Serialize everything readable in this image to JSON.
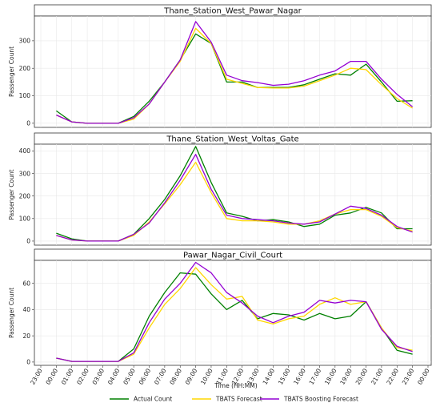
{
  "colors": {
    "actual": "#008000",
    "tbats": "#ffd700",
    "boosting": "#9400d3"
  },
  "chart_data": [
    {
      "type": "line",
      "title": "Thane_Station_West_Pawar_Nagar",
      "ylabel": "Passenger Count",
      "ylim": [
        -15,
        390
      ],
      "yticks": [
        "0",
        "100",
        "200",
        "300"
      ],
      "ytick_values": [
        0,
        100,
        200,
        300
      ],
      "x": [
        "00:00",
        "01:00",
        "02:00",
        "03:00",
        "04:00",
        "05:00",
        "06:00",
        "07:00",
        "08:00",
        "09:00",
        "10:00",
        "11:00",
        "12:00",
        "13:00",
        "14:00",
        "15:00",
        "16:00",
        "17:00",
        "18:00",
        "19:00",
        "20:00",
        "21:00",
        "22:00",
        "23:00"
      ],
      "series": [
        {
          "name": "Actual Count",
          "values": [
            45,
            5,
            0,
            0,
            0,
            25,
            80,
            150,
            230,
            325,
            290,
            150,
            150,
            130,
            130,
            130,
            140,
            160,
            180,
            175,
            215,
            150,
            80,
            82
          ]
        },
        {
          "name": "TBATS Forecast",
          "values": [
            30,
            5,
            0,
            0,
            0,
            15,
            70,
            150,
            225,
            345,
            290,
            160,
            145,
            130,
            128,
            128,
            135,
            155,
            175,
            200,
            195,
            140,
            90,
            55
          ]
        },
        {
          "name": "TBATS Boosting Forecast",
          "values": [
            30,
            5,
            0,
            0,
            0,
            20,
            70,
            150,
            230,
            370,
            295,
            175,
            155,
            148,
            138,
            142,
            155,
            175,
            190,
            225,
            225,
            160,
            105,
            60
          ]
        }
      ]
    },
    {
      "type": "line",
      "title": "Thane_Station_West_Voltas_Gate",
      "ylabel": "Passenger Count",
      "ylim": [
        -18,
        430
      ],
      "yticks": [
        "0",
        "100",
        "200",
        "300",
        "400"
      ],
      "ytick_values": [
        0,
        100,
        200,
        300,
        400
      ],
      "x": [
        "00:00",
        "01:00",
        "02:00",
        "03:00",
        "04:00",
        "05:00",
        "06:00",
        "07:00",
        "08:00",
        "09:00",
        "10:00",
        "11:00",
        "12:00",
        "13:00",
        "14:00",
        "15:00",
        "16:00",
        "17:00",
        "18:00",
        "19:00",
        "20:00",
        "21:00",
        "22:00",
        "23:00"
      ],
      "series": [
        {
          "name": "Actual Count",
          "values": [
            35,
            10,
            0,
            0,
            0,
            30,
            100,
            185,
            290,
            420,
            260,
            125,
            110,
            90,
            95,
            85,
            65,
            75,
            115,
            125,
            150,
            125,
            55,
            55
          ]
        },
        {
          "name": "TBATS Forecast",
          "values": [
            25,
            5,
            0,
            0,
            0,
            25,
            85,
            165,
            250,
            350,
            215,
            100,
            90,
            90,
            85,
            75,
            75,
            90,
            120,
            140,
            140,
            110,
            60,
            45
          ]
        },
        {
          "name": "TBATS Boosting Forecast",
          "values": [
            25,
            5,
            0,
            0,
            0,
            30,
            80,
            170,
            270,
            385,
            230,
            115,
            100,
            95,
            90,
            80,
            75,
            85,
            120,
            155,
            145,
            115,
            65,
            40
          ]
        }
      ]
    },
    {
      "type": "line",
      "title": "Pawar_Nagar_Civil_Court",
      "ylabel": "Passenger Count",
      "ylim": [
        -2.5,
        77.5
      ],
      "yticks": [
        "0",
        "20",
        "40",
        "60"
      ],
      "ytick_values": [
        0,
        20,
        40,
        60
      ],
      "x": [
        "00:00",
        "01:00",
        "02:00",
        "03:00",
        "04:00",
        "05:00",
        "06:00",
        "07:00",
        "08:00",
        "09:00",
        "10:00",
        "11:00",
        "12:00",
        "13:00",
        "14:00",
        "15:00",
        "16:00",
        "17:00",
        "18:00",
        "19:00",
        "20:00",
        "21:00",
        "22:00",
        "23:00"
      ],
      "series": [
        {
          "name": "Actual Count",
          "values": [
            3,
            0.5,
            0.5,
            0.5,
            0.5,
            10,
            35,
            53,
            68,
            67,
            52,
            40,
            47,
            33,
            37,
            36,
            32,
            37,
            33,
            35,
            46,
            26,
            9,
            6
          ]
        },
        {
          "name": "TBATS Forecast",
          "values": [
            3,
            0.5,
            0.5,
            0.5,
            0.5,
            6,
            26,
            44,
            56,
            72,
            59,
            48,
            50,
            32,
            29,
            33,
            35,
            44,
            49,
            44,
            46,
            26,
            11,
            9
          ]
        },
        {
          "name": "TBATS Boosting Forecast",
          "values": [
            3,
            0.5,
            0.5,
            0.5,
            0.5,
            7,
            30,
            48,
            60,
            76,
            68,
            53,
            45,
            35,
            30,
            35,
            38,
            47,
            45,
            47,
            46,
            25,
            12,
            8
          ]
        }
      ]
    }
  ],
  "x_axis": {
    "label": "Time (HH:MM)",
    "ticks": [
      "23:00",
      "00:00",
      "01:00",
      "02:00",
      "03:00",
      "04:00",
      "05:00",
      "06:00",
      "07:00",
      "08:00",
      "09:00",
      "10:00",
      "11:00",
      "12:00",
      "13:00",
      "14:00",
      "15:00",
      "16:00",
      "17:00",
      "18:00",
      "19:00",
      "20:00",
      "21:00",
      "22:00",
      "23:00",
      "00:00"
    ]
  },
  "legend": {
    "placement": "bottom",
    "entries": [
      "Actual Count",
      "TBATS Forecast",
      "TBATS Boosting Forecast"
    ]
  }
}
